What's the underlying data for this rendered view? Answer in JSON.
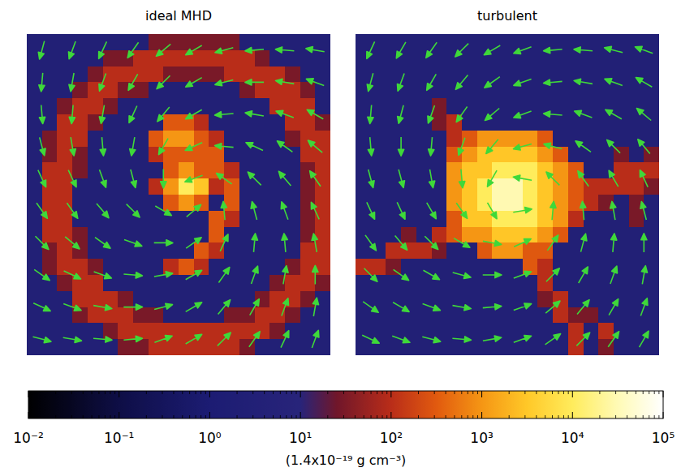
{
  "chart_data": [
    {
      "type": "heatmap",
      "title": "ideal MHD",
      "tick_labels": false,
      "cells": [
        [
          3,
          3,
          3,
          3,
          3,
          3,
          3,
          3,
          30,
          30,
          30,
          30,
          30,
          30,
          3,
          3,
          3,
          3,
          3,
          3
        ],
        [
          3,
          3,
          3,
          3,
          3,
          30,
          30,
          100,
          100,
          100,
          100,
          100,
          100,
          100,
          100,
          30,
          3,
          3,
          3,
          3
        ],
        [
          3,
          3,
          3,
          3,
          30,
          100,
          100,
          100,
          100,
          30,
          30,
          30,
          30,
          100,
          100,
          100,
          100,
          30,
          3,
          3
        ],
        [
          3,
          3,
          3,
          30,
          100,
          100,
          30,
          30,
          3,
          3,
          3,
          3,
          3,
          3,
          30,
          100,
          100,
          100,
          30,
          3
        ],
        [
          3,
          3,
          30,
          100,
          100,
          30,
          3,
          3,
          3,
          3,
          3,
          3,
          3,
          3,
          3,
          3,
          100,
          100,
          100,
          3
        ],
        [
          3,
          3,
          100,
          100,
          30,
          3,
          3,
          3,
          3,
          300,
          300,
          100,
          3,
          3,
          3,
          3,
          3,
          100,
          100,
          30
        ],
        [
          3,
          30,
          100,
          100,
          3,
          3,
          3,
          3,
          300,
          1000,
          1000,
          300,
          100,
          3,
          3,
          3,
          3,
          30,
          100,
          100
        ],
        [
          3,
          30,
          100,
          30,
          3,
          3,
          3,
          3,
          100,
          300,
          300,
          300,
          300,
          3,
          3,
          3,
          3,
          3,
          100,
          100
        ],
        [
          3,
          100,
          100,
          30,
          3,
          3,
          3,
          3,
          3,
          300,
          1000,
          300,
          300,
          100,
          3,
          3,
          3,
          3,
          30,
          100
        ],
        [
          3,
          100,
          100,
          3,
          3,
          3,
          3,
          3,
          100,
          1000,
          10000,
          3000,
          100,
          300,
          3,
          3,
          3,
          3,
          30,
          100
        ],
        [
          3,
          100,
          100,
          3,
          3,
          3,
          3,
          3,
          3,
          300,
          1000,
          300,
          3,
          300,
          3,
          3,
          3,
          3,
          30,
          100
        ],
        [
          3,
          100,
          100,
          3,
          3,
          3,
          3,
          3,
          3,
          3,
          3,
          3,
          300,
          100,
          3,
          3,
          3,
          3,
          30,
          100
        ],
        [
          3,
          100,
          100,
          30,
          3,
          3,
          3,
          3,
          3,
          3,
          3,
          3,
          300,
          3,
          3,
          3,
          3,
          3,
          30,
          100
        ],
        [
          3,
          30,
          100,
          30,
          3,
          3,
          3,
          3,
          3,
          3,
          3,
          300,
          100,
          3,
          3,
          3,
          3,
          3,
          100,
          100
        ],
        [
          3,
          30,
          100,
          100,
          30,
          3,
          3,
          3,
          3,
          100,
          300,
          100,
          3,
          3,
          3,
          3,
          3,
          30,
          100,
          100
        ],
        [
          3,
          3,
          30,
          100,
          100,
          3,
          3,
          3,
          3,
          3,
          3,
          3,
          3,
          3,
          3,
          3,
          30,
          100,
          100,
          30
        ],
        [
          3,
          3,
          3,
          100,
          100,
          100,
          30,
          3,
          3,
          3,
          3,
          3,
          3,
          3,
          3,
          30,
          100,
          100,
          30,
          3
        ],
        [
          3,
          3,
          3,
          30,
          100,
          100,
          100,
          30,
          30,
          3,
          3,
          3,
          3,
          30,
          30,
          100,
          100,
          30,
          3,
          3
        ],
        [
          3,
          3,
          3,
          3,
          3,
          30,
          100,
          100,
          100,
          100,
          100,
          100,
          100,
          100,
          100,
          100,
          30,
          3,
          3,
          3
        ],
        [
          3,
          3,
          3,
          3,
          3,
          3,
          30,
          30,
          100,
          100,
          100,
          100,
          100,
          100,
          30,
          3,
          3,
          3,
          3,
          3
        ]
      ],
      "arrow_angles": [
        [
          105,
          110,
          115,
          125,
          140,
          150,
          165,
          175,
          -175,
          -170
        ],
        [
          95,
          100,
          110,
          120,
          135,
          150,
          165,
          180,
          -170,
          -160
        ],
        [
          85,
          95,
          100,
          115,
          130,
          150,
          175,
          -170,
          -160,
          -150
        ],
        [
          75,
          80,
          85,
          100,
          120,
          155,
          -175,
          -155,
          -145,
          -140
        ],
        [
          65,
          65,
          70,
          75,
          90,
          160,
          -145,
          -135,
          -130,
          -125
        ],
        [
          55,
          55,
          50,
          45,
          30,
          -40,
          -95,
          -105,
          -110,
          -115
        ],
        [
          45,
          40,
          35,
          20,
          0,
          -35,
          -65,
          -85,
          -95,
          -100
        ],
        [
          35,
          25,
          20,
          5,
          -10,
          -30,
          -55,
          -70,
          -80,
          -90
        ],
        [
          25,
          20,
          10,
          0,
          -15,
          -30,
          -50,
          -60,
          -70,
          -80
        ],
        [
          15,
          10,
          5,
          -5,
          -20,
          -30,
          -45,
          -55,
          -65,
          -70
        ]
      ]
    },
    {
      "type": "heatmap",
      "title": "turbulent",
      "tick_labels": false,
      "cells": [
        [
          3,
          3,
          3,
          3,
          3,
          3,
          3,
          3,
          3,
          3,
          3,
          3,
          3,
          3,
          3,
          3,
          3,
          3,
          3,
          3
        ],
        [
          3,
          3,
          3,
          3,
          3,
          3,
          3,
          3,
          3,
          3,
          3,
          3,
          3,
          3,
          3,
          3,
          3,
          3,
          3,
          3
        ],
        [
          3,
          3,
          3,
          3,
          3,
          3,
          3,
          3,
          3,
          3,
          3,
          3,
          3,
          3,
          3,
          3,
          3,
          3,
          3,
          3
        ],
        [
          3,
          3,
          3,
          3,
          3,
          3,
          3,
          3,
          3,
          3,
          3,
          3,
          3,
          3,
          3,
          3,
          3,
          3,
          3,
          3
        ],
        [
          3,
          3,
          3,
          3,
          3,
          30,
          3,
          3,
          3,
          3,
          3,
          3,
          3,
          3,
          3,
          3,
          3,
          3,
          3,
          3
        ],
        [
          3,
          3,
          3,
          3,
          3,
          30,
          100,
          3,
          3,
          3,
          3,
          3,
          3,
          3,
          3,
          3,
          3,
          3,
          3,
          3
        ],
        [
          3,
          3,
          3,
          3,
          3,
          3,
          100,
          300,
          1000,
          1000,
          1000,
          1000,
          300,
          3,
          3,
          3,
          3,
          3,
          3,
          3
        ],
        [
          3,
          3,
          3,
          3,
          3,
          3,
          300,
          1000,
          3000,
          3000,
          3000,
          3000,
          1000,
          300,
          3,
          3,
          3,
          30,
          3,
          30
        ],
        [
          3,
          3,
          3,
          3,
          3,
          3,
          1000,
          3000,
          3000,
          10000,
          10000,
          10000,
          3000,
          1000,
          300,
          3,
          3,
          100,
          100,
          100
        ],
        [
          3,
          3,
          3,
          3,
          3,
          3,
          1000,
          3000,
          10000,
          30000,
          30000,
          10000,
          3000,
          1000,
          300,
          100,
          100,
          100,
          100,
          30
        ],
        [
          3,
          3,
          3,
          3,
          3,
          3,
          1000,
          3000,
          10000,
          30000,
          30000,
          10000,
          3000,
          1000,
          300,
          100,
          30,
          3,
          30,
          3
        ],
        [
          3,
          3,
          3,
          3,
          3,
          3,
          300,
          3000,
          3000,
          10000,
          10000,
          10000,
          3000,
          1000,
          100,
          3,
          3,
          3,
          30,
          3
        ],
        [
          3,
          3,
          3,
          30,
          3,
          100,
          300,
          1000,
          1000,
          3000,
          3000,
          3000,
          1000,
          300,
          3,
          3,
          3,
          3,
          3,
          3
        ],
        [
          3,
          3,
          100,
          100,
          100,
          30,
          3,
          3,
          300,
          1000,
          1000,
          300,
          300,
          3,
          3,
          3,
          3,
          3,
          3,
          3
        ],
        [
          100,
          100,
          30,
          3,
          3,
          3,
          3,
          3,
          3,
          3,
          3,
          300,
          100,
          3,
          3,
          3,
          3,
          3,
          3,
          3
        ],
        [
          3,
          3,
          3,
          3,
          3,
          3,
          3,
          3,
          3,
          3,
          3,
          3,
          100,
          3,
          3,
          3,
          3,
          3,
          3,
          3
        ],
        [
          3,
          3,
          3,
          3,
          3,
          3,
          3,
          3,
          3,
          3,
          3,
          3,
          30,
          100,
          3,
          3,
          3,
          3,
          3,
          3
        ],
        [
          3,
          3,
          3,
          3,
          3,
          3,
          3,
          3,
          3,
          3,
          3,
          3,
          3,
          100,
          30,
          30,
          3,
          3,
          3,
          3
        ],
        [
          3,
          3,
          3,
          3,
          3,
          3,
          3,
          3,
          3,
          3,
          3,
          3,
          3,
          3,
          100,
          3,
          100,
          3,
          3,
          3
        ],
        [
          3,
          3,
          3,
          3,
          3,
          3,
          3,
          3,
          3,
          3,
          3,
          3,
          3,
          3,
          100,
          3,
          30,
          3,
          3,
          3
        ]
      ],
      "arrow_angles": [
        [
          115,
          120,
          125,
          135,
          150,
          160,
          175,
          -175,
          -165,
          -160
        ],
        [
          105,
          110,
          120,
          130,
          145,
          160,
          175,
          -170,
          -160,
          -150
        ],
        [
          95,
          105,
          110,
          125,
          140,
          160,
          -175,
          -160,
          -150,
          -140
        ],
        [
          85,
          90,
          95,
          110,
          130,
          165,
          -165,
          -145,
          -135,
          -130
        ],
        [
          75,
          75,
          80,
          85,
          120,
          -170,
          -135,
          -125,
          -120,
          -115
        ],
        [
          65,
          65,
          60,
          55,
          60,
          -10,
          -85,
          -95,
          -100,
          -105
        ],
        [
          55,
          50,
          45,
          30,
          10,
          -25,
          -55,
          -75,
          -85,
          -90
        ],
        [
          45,
          35,
          30,
          15,
          0,
          -20,
          -45,
          -60,
          -70,
          -80
        ],
        [
          35,
          30,
          20,
          10,
          -5,
          -20,
          -40,
          -50,
          -60,
          -70
        ],
        [
          25,
          20,
          15,
          5,
          -10,
          -20,
          -35,
          -45,
          -55,
          -60
        ]
      ]
    }
  ],
  "colorbar": {
    "log": true,
    "range": [
      0.01,
      100000
    ],
    "ticks": [
      {
        "value": 0.01,
        "label": "10⁻²"
      },
      {
        "value": 0.1,
        "label": "10⁻¹"
      },
      {
        "value": 1,
        "label": "10⁰"
      },
      {
        "value": 10,
        "label": "10¹"
      },
      {
        "value": 100,
        "label": "10²"
      },
      {
        "value": 1000,
        "label": "10³"
      },
      {
        "value": 10000,
        "label": "10⁴"
      },
      {
        "value": 100000,
        "label": "10⁵"
      }
    ],
    "minor_ticks": [
      0.02,
      0.03,
      0.04,
      0.05,
      0.06,
      0.07,
      0.08,
      0.09,
      0.2,
      0.3,
      0.4,
      0.5,
      0.6,
      0.7,
      0.8,
      0.9,
      2,
      3,
      4,
      5,
      6,
      7,
      8,
      9,
      20,
      30,
      40,
      50,
      60,
      70,
      80,
      90,
      200,
      300,
      400,
      500,
      600,
      700,
      800,
      900,
      2000,
      3000,
      4000,
      5000,
      6000,
      7000,
      8000,
      9000,
      20000,
      30000,
      40000,
      50000,
      60000,
      70000,
      80000,
      90000
    ],
    "label": "(1.4x10⁻¹⁹ g cm⁻³)"
  }
}
